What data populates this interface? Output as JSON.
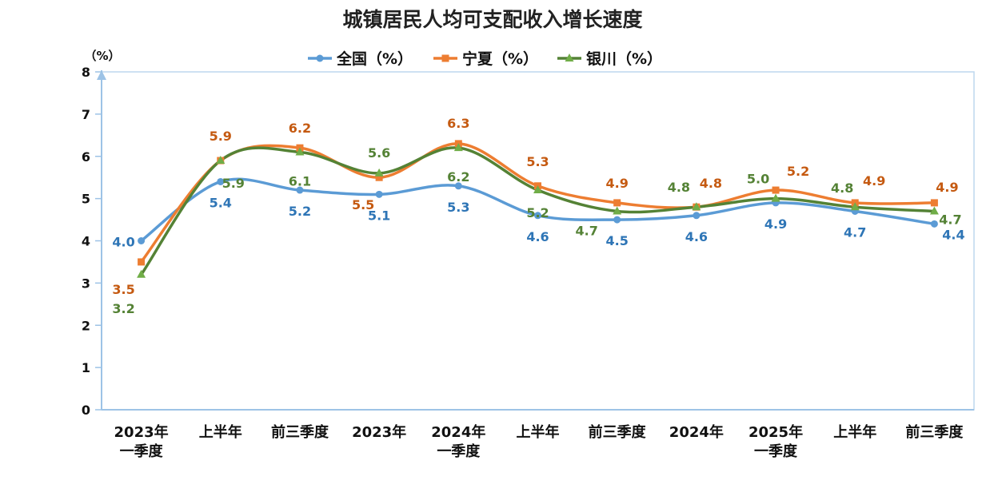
{
  "chart_data": {
    "type": "line",
    "title": "城镇居民人均可支配收入增长速度",
    "ylabel": "（%）",
    "xlabel": "",
    "ylim": [
      0,
      8
    ],
    "yticks": [
      "0",
      "1",
      "2",
      "3",
      "4",
      "5",
      "6",
      "7",
      "8"
    ],
    "categories": [
      [
        "2023年",
        "一季度"
      ],
      [
        "上半年"
      ],
      [
        "前三季度"
      ],
      [
        "2023年"
      ],
      [
        "2024年",
        "一季度"
      ],
      [
        "上半年"
      ],
      [
        "前三季度"
      ],
      [
        "2024年"
      ],
      [
        "2025年",
        "一季度"
      ],
      [
        "上半年"
      ],
      [
        "前三季度"
      ]
    ],
    "legend_position": "top-center",
    "series": [
      {
        "name": "全国（%）",
        "color": "#5b9bd5",
        "label_color": "#2e75b6",
        "marker": "circle",
        "values": [
          4.0,
          5.4,
          5.2,
          5.1,
          5.3,
          4.6,
          4.5,
          4.6,
          4.9,
          4.7,
          4.4
        ],
        "labels": [
          "4.0",
          "5.4",
          "5.2",
          "5.1",
          "5.3",
          "4.6",
          "4.5",
          "4.6",
          "4.9",
          "4.7",
          "4.4"
        ]
      },
      {
        "name": "宁夏（%）",
        "color": "#ed7d31",
        "label_color": "#c55a11",
        "marker": "square",
        "values": [
          3.5,
          5.9,
          6.2,
          5.5,
          6.3,
          5.3,
          4.9,
          4.8,
          5.2,
          4.9,
          4.9
        ],
        "labels": [
          "3.5",
          "5.9",
          "6.2",
          "5.5",
          "6.3",
          "5.3",
          "4.9",
          "4.8",
          "5.2",
          "4.9",
          "4.9"
        ]
      },
      {
        "name": "银川（%）",
        "color": "#548235",
        "label_color": "#548235",
        "marker": "triangle",
        "values": [
          3.2,
          5.9,
          6.1,
          5.6,
          6.2,
          5.2,
          4.7,
          4.8,
          5.0,
          4.8,
          4.7
        ],
        "labels": [
          "3.2",
          "5.9",
          "6.1",
          "5.6",
          "6.2",
          "5.2",
          "4.7",
          "4.8",
          "5.0",
          "4.8",
          "4.7"
        ]
      }
    ]
  }
}
